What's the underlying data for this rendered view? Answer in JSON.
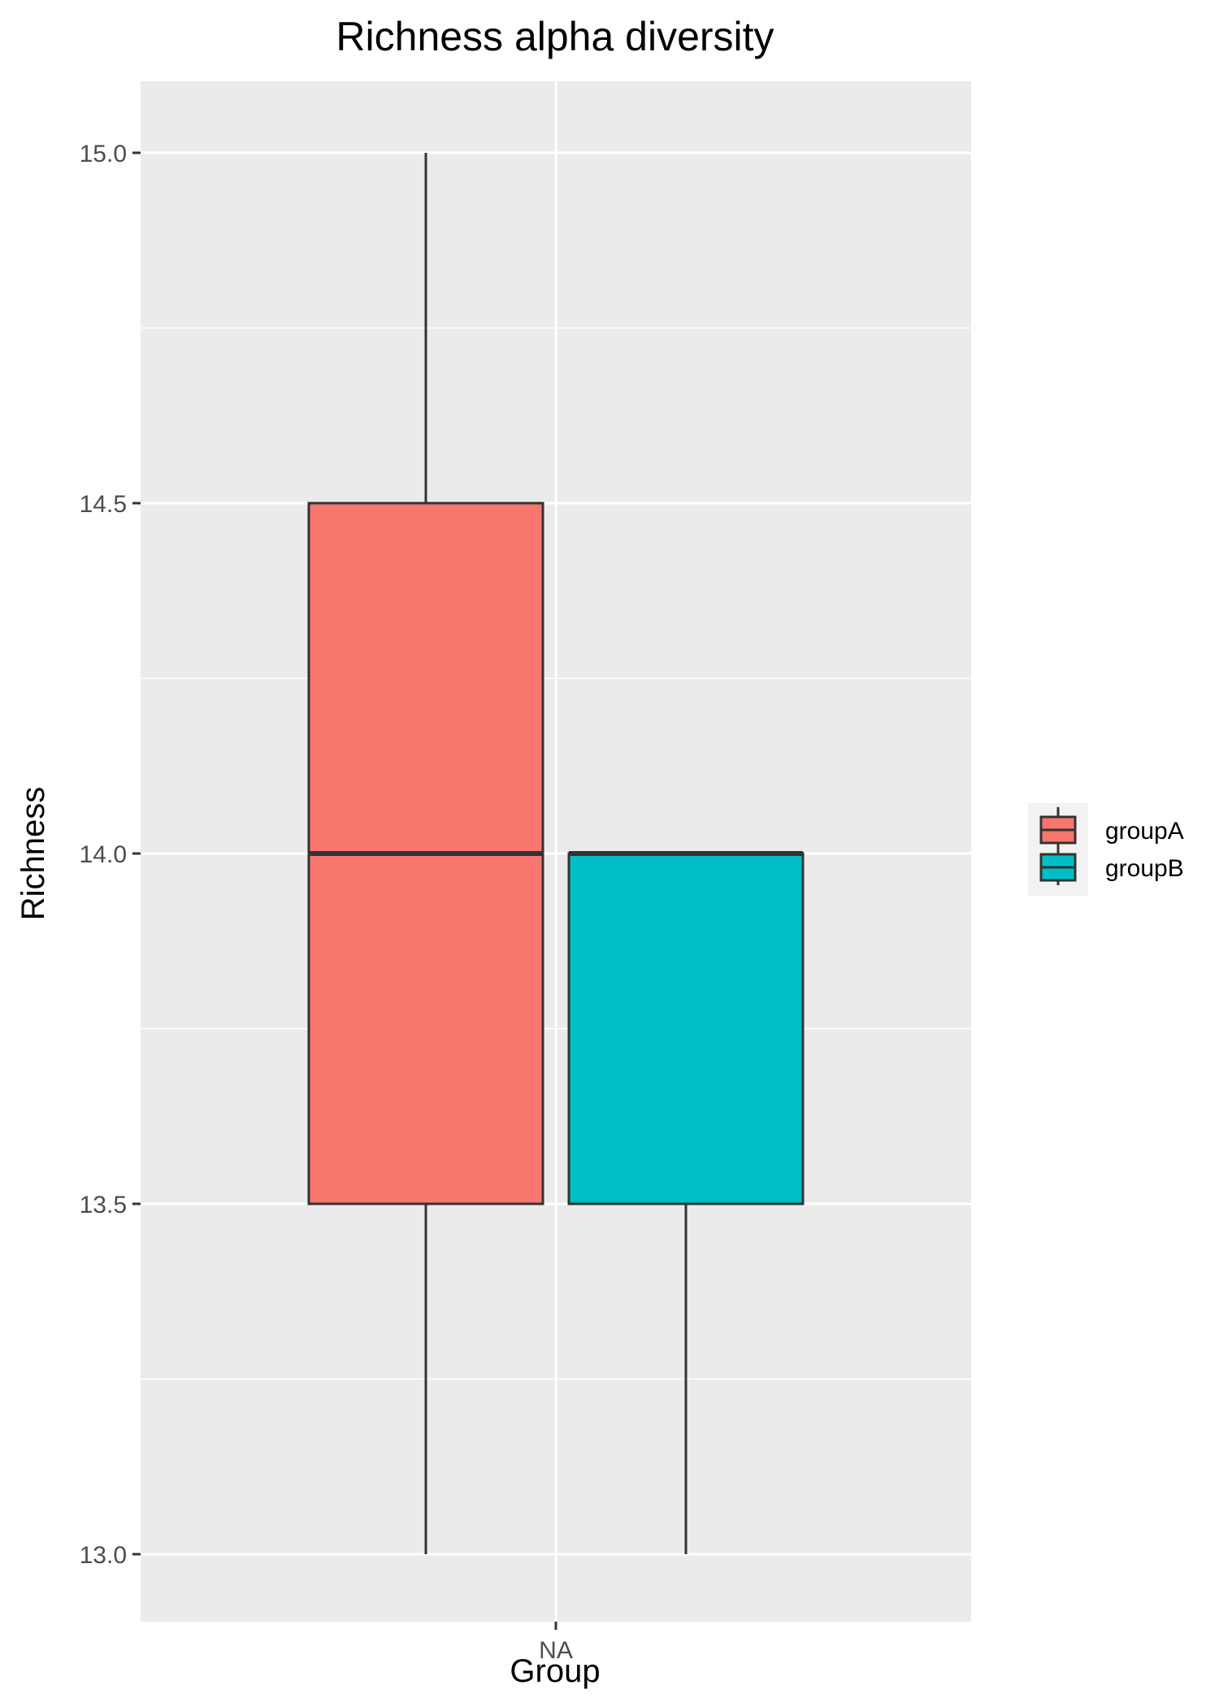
{
  "chart_data": {
    "type": "boxplot",
    "title": "Richness alpha diversity",
    "xlabel": "Group",
    "ylabel": "Richness",
    "categories": [
      "NA"
    ],
    "ylim": [
      12.9,
      15.2
    ],
    "yticks": [
      13.0,
      13.5,
      14.0,
      14.5,
      15.0
    ],
    "ytick_labels": [
      "13.0",
      "13.5",
      "14.0",
      "14.5",
      "15.0"
    ],
    "grid": true,
    "legend_position": "right",
    "series": [
      {
        "name": "groupA",
        "color": "#F8766D",
        "category": "NA",
        "min": 13.0,
        "q1": 13.5,
        "median": 14.0,
        "q3": 14.5,
        "max": 15.0
      },
      {
        "name": "groupB",
        "color": "#00BFC4",
        "category": "NA",
        "min": 13.0,
        "q1": 13.5,
        "median": 14.0,
        "q3": 14.0,
        "max": 14.0
      }
    ],
    "colors": {
      "panel": "#EBEBEB",
      "grid": "#FFFFFF",
      "outline": "#333333",
      "legend_bg": "#F2F2F2"
    }
  }
}
